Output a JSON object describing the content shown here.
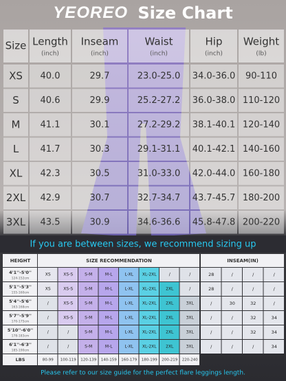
{
  "title": {
    "brand": "YEOREO",
    "text": "Size Chart"
  },
  "size_table": {
    "columns": [
      {
        "name": "Size"
      },
      {
        "name": "Length",
        "unit": "(inch)"
      },
      {
        "name": "Inseam",
        "unit": "(inch)"
      },
      {
        "name": "Waist",
        "unit": "(inch)"
      },
      {
        "name": "Hip",
        "unit": "(inch)"
      },
      {
        "name": "Weight",
        "unit": "(lb)"
      }
    ],
    "rows": [
      [
        "XS",
        "40.0",
        "29.7",
        "23.0-25.0",
        "34.0-36.0",
        "90-110"
      ],
      [
        "S",
        "40.6",
        "29.9",
        "25.2-27.2",
        "36.0-38.0",
        "110-120"
      ],
      [
        "M",
        "41.1",
        "30.1",
        "27.2-29.2",
        "38.1-40.1",
        "120-140"
      ],
      [
        "L",
        "41.7",
        "30.3",
        "29.1-31.1",
        "40.1-42.1",
        "140-160"
      ],
      [
        "XL",
        "42.3",
        "30.5",
        "31.0-33.0",
        "42.0-44.0",
        "160-180"
      ],
      [
        "2XL",
        "42.9",
        "30.7",
        "32.7-34.7",
        "43.7-45.7",
        "180-200"
      ],
      [
        "3XL",
        "43.5",
        "30.9",
        "34.6-36.6",
        "45.8-47.8",
        "200-220"
      ]
    ]
  },
  "notice": "If you are between sizes, we recommend sizing up",
  "recommendation": {
    "headers": {
      "height": "HEIGHT",
      "size": "SIZE RECOMMENDATION",
      "inseam": "INSEAM(IN)"
    },
    "rows": [
      {
        "height": "4'1''-5'0''",
        "cm": "124-152cm",
        "sizes": [
          "XS",
          "XS-S",
          "S-M",
          "M-L",
          "L-XL",
          "XL-2XL",
          "/",
          "/"
        ],
        "inseam": [
          "28",
          "/",
          "/",
          "/"
        ]
      },
      {
        "height": "5'1''-5'3''",
        "cm": "155-160cm",
        "sizes": [
          "XS",
          "XS-S",
          "S-M",
          "M-L",
          "L-XL",
          "XL-2XL",
          "2XL",
          "/"
        ],
        "inseam": [
          "28",
          "/",
          "/",
          "/"
        ]
      },
      {
        "height": "5'4''-5'6''",
        "cm": "163-168cm",
        "sizes": [
          "/",
          "XS-S",
          "S-M",
          "M-L",
          "L-XL",
          "XL-2XL",
          "2XL",
          "3XL"
        ],
        "inseam": [
          "/",
          "30",
          "32",
          "/"
        ]
      },
      {
        "height": "5'7''-5'9''",
        "cm": "170-175cm",
        "sizes": [
          "/",
          "XS-S",
          "S-M",
          "M-L",
          "L-XL",
          "XL-2XL",
          "2XL",
          "3XL"
        ],
        "inseam": [
          "/",
          "/",
          "32",
          "34"
        ]
      },
      {
        "height": "5'10''-6'0''",
        "cm": "178-183cm",
        "sizes": [
          "/",
          "/",
          "S-M",
          "M-L",
          "L-XL",
          "XL-2XL",
          "2XL",
          "3XL"
        ],
        "inseam": [
          "/",
          "/",
          "32",
          "34"
        ]
      },
      {
        "height": "6'1''-6'3''",
        "cm": "185-190cm",
        "sizes": [
          "/",
          "/",
          "S-M",
          "M-L",
          "L-XL",
          "XL-2XL",
          "2XL",
          "3XL"
        ],
        "inseam": [
          "/",
          "/",
          "/",
          "34"
        ]
      }
    ],
    "weight_label": "LBS",
    "weights": [
      "80-99",
      "100-119",
      "120-139",
      "140-159",
      "160-179",
      "180-199",
      "200-219",
      "220-240"
    ]
  },
  "footer": "Please refer to our size guide for the perfect flare leggings length."
}
